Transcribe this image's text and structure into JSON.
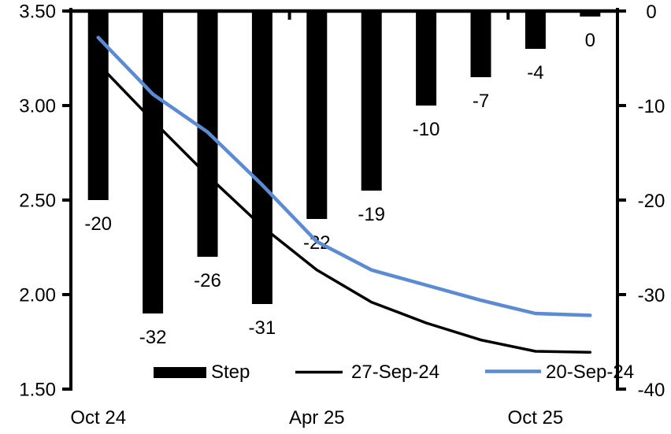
{
  "chart_data": {
    "type": "combo",
    "background": "#ffffff",
    "categories": [
      "m1",
      "m2",
      "m3",
      "m4",
      "m5",
      "m6",
      "m7",
      "m8",
      "m9",
      "m10"
    ],
    "axes": {
      "left": {
        "min": 1.5,
        "max": 3.5,
        "ticks": [
          {
            "label": "3.50",
            "value": 3.5
          },
          {
            "label": "3.00",
            "value": 3.0
          },
          {
            "label": "2.50",
            "value": 2.5
          },
          {
            "label": "2.00",
            "value": 2.0
          },
          {
            "label": "1.50",
            "value": 1.5
          }
        ]
      },
      "right": {
        "min": -40,
        "max": 0,
        "ticks": [
          {
            "label": "0",
            "value": 0
          },
          {
            "label": "-10",
            "value": -10
          },
          {
            "label": "-20",
            "value": -20
          },
          {
            "label": "-30",
            "value": -30
          },
          {
            "label": "-40",
            "value": -40
          }
        ]
      },
      "x": {
        "labels": [
          {
            "slot": 0,
            "label": "Oct 24"
          },
          {
            "slot": 4,
            "label": "Apr 25"
          },
          {
            "slot": 8,
            "label": "Oct 25"
          }
        ],
        "boundary_tick_slots": [
          0,
          4,
          8
        ]
      }
    },
    "bar_series": {
      "name": "Step",
      "axis": "right",
      "color": "#000000",
      "values": [
        -20,
        -32,
        -26,
        -31,
        -22,
        -19,
        -10,
        -7,
        -4,
        0
      ],
      "labels": [
        "-20",
        "-32",
        "-26",
        "-31",
        "-22",
        "-19",
        "-10",
        "-7",
        "-4",
        "0"
      ]
    },
    "line_series": [
      {
        "name": "27-Sep-24",
        "axis": "left",
        "color": "#000000",
        "stroke_width": 3.5,
        "values": [
          3.22,
          2.92,
          2.63,
          2.36,
          2.13,
          1.96,
          1.85,
          1.76,
          1.7,
          1.695
        ]
      },
      {
        "name": "20-Sep-24",
        "axis": "left",
        "color": "#5B8BD3",
        "stroke_width": 4.5,
        "values": [
          3.36,
          3.06,
          2.86,
          2.58,
          2.28,
          2.13,
          2.05,
          1.97,
          1.9,
          1.89
        ]
      }
    ],
    "legend": {
      "items": [
        {
          "swatch": "bar",
          "color": "#000000",
          "label": "Step"
        },
        {
          "swatch": "line",
          "color": "#000000",
          "label": "27-Sep-24"
        },
        {
          "swatch": "line",
          "color": "#5B8BD3",
          "label": "20-Sep-24"
        }
      ]
    }
  }
}
